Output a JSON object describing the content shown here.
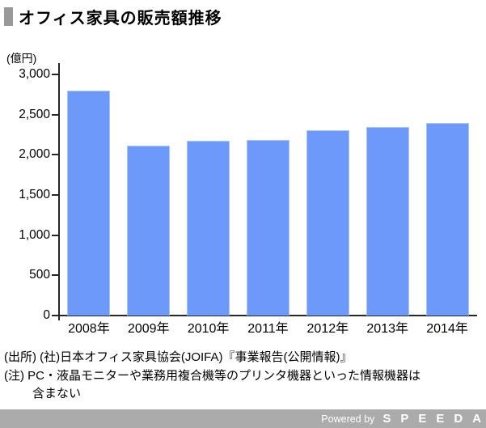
{
  "header": {
    "title": "オフィス家具の販売額推移"
  },
  "chart_data": {
    "type": "bar",
    "title": "オフィス家具の販売額推移",
    "unit_label": "(億円)",
    "categories": [
      "2008年",
      "2009年",
      "2010年",
      "2011年",
      "2012年",
      "2013年",
      "2014年"
    ],
    "values": [
      2800,
      2110,
      2170,
      2180,
      2310,
      2350,
      2400
    ],
    "ylabel": "(億円)",
    "xlabel": "",
    "ylim": [
      0,
      3000
    ],
    "ytick_interval": 500,
    "ytick_labels": [
      "0",
      "500",
      "1,000",
      "1,500",
      "2,000",
      "2,500",
      "3,000"
    ],
    "grid": false,
    "legend": "none",
    "bar_color": "#6C99FA"
  },
  "notes": {
    "source_line": "(出所) (社)日本オフィス家具協会(JOIFA)『事業報告(公開情報)』",
    "note_line_1": "(注) PC・液晶モニターや業務用複合機等のプリンタ機器といった情報機器は",
    "note_line_2": "含まない"
  },
  "footer": {
    "powered_by": "Powered by",
    "brand": "SPEEDA"
  },
  "colors": {
    "bar": "#6C99FA",
    "bar_edge": "#aac6f7",
    "title_marker": "#999999",
    "axis": "#262626",
    "footer_bg": "#ababab",
    "footer_text": "#ffffff"
  }
}
